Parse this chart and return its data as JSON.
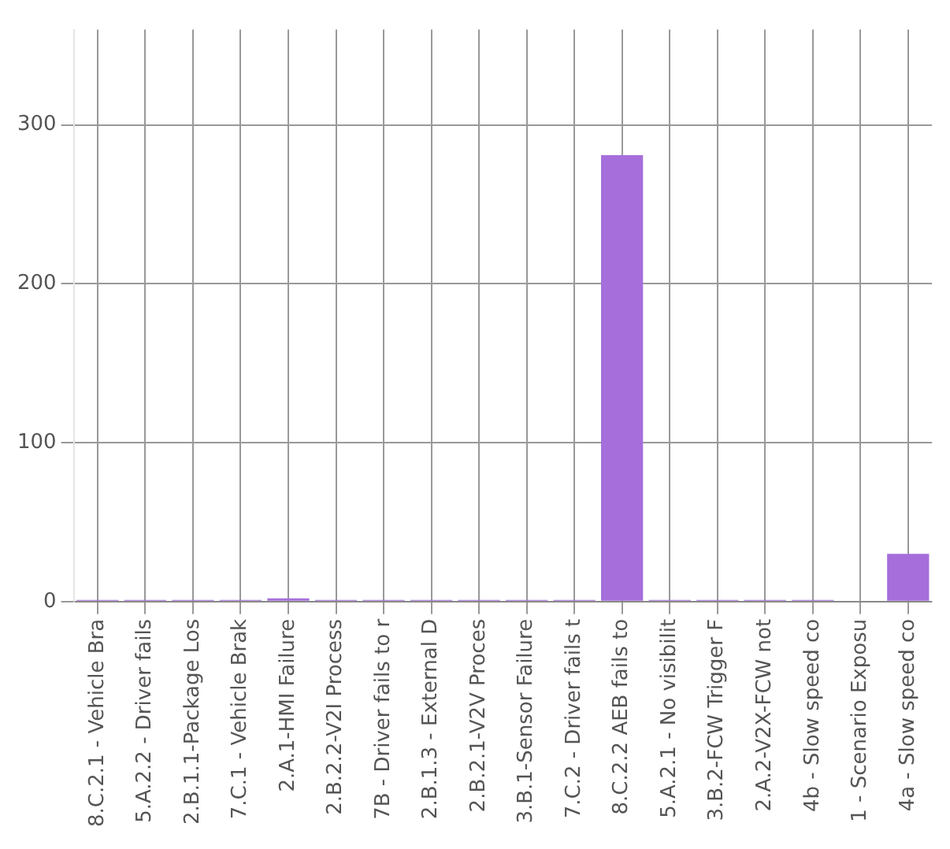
{
  "chart_data": {
    "type": "bar",
    "categories": [
      "8.C.2.1 - Vehicle Bra",
      "5.A.2.2 - Driver fails",
      "2.B.1.1-Package Los",
      "7.C.1 - Vehicle Brak",
      "2.A.1-HMI Failure",
      "2.B.2.2-V2I Process",
      "7B - Driver fails to r",
      "2.B.1.3 - External D",
      "2.B.2.1-V2V Proces",
      "3.B.1-Sensor Failure",
      "7.C.2 - Driver fails t",
      "8.C.2.2 AEB fails to",
      "5.A.2.1 - No visibilit",
      "3.B.2-FCW Trigger F",
      "2.A.2-V2X-FCW not",
      "4b - Slow speed co",
      "1 - Scenario Exposu",
      "4a - Slow speed co"
    ],
    "values": [
      1,
      1,
      1,
      1,
      2,
      1,
      1,
      1,
      1,
      1,
      1,
      281,
      1,
      1,
      1,
      1,
      0,
      30
    ],
    "color": "#a56edb",
    "ylim": [
      0,
      360
    ],
    "yticks": [
      0,
      100,
      200,
      300
    ],
    "grid": true
  }
}
